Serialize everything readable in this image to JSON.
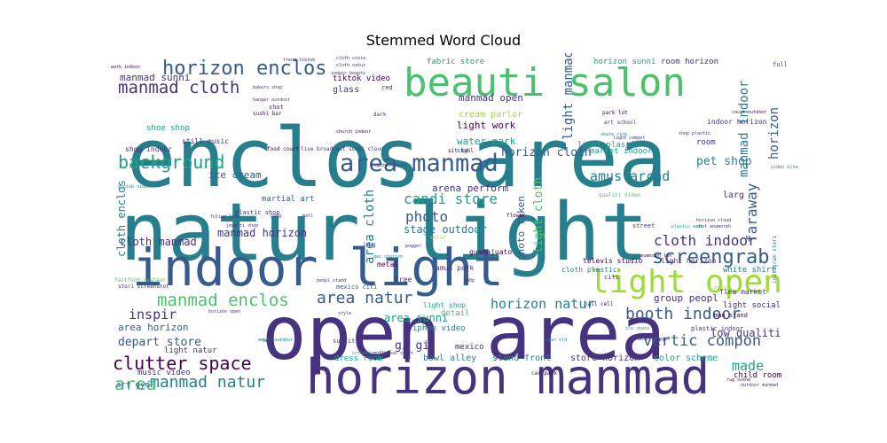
{
  "chart_data": {
    "type": "wordcloud",
    "title": "Stemmed Word Cloud",
    "palette": [
      "#440154",
      "#46327e",
      "#365c8d",
      "#277f8e",
      "#1fa187",
      "#4ac16d",
      "#a0da39",
      "#fde725"
    ],
    "words": [
      {
        "text": "enclos area",
        "size": 10,
        "color": "#277f8e"
      },
      {
        "text": "natur light",
        "size": 9.6,
        "color": "#277f8e"
      },
      {
        "text": "open area",
        "size": 8.8,
        "color": "#46327e"
      },
      {
        "text": "indoor light",
        "size": 7.2,
        "color": "#365c8d"
      },
      {
        "text": "horizon manmad",
        "size": 6.8,
        "color": "#46327e"
      },
      {
        "text": "beauti salon",
        "size": 5.0,
        "color": "#4ac16d"
      },
      {
        "text": "light open",
        "size": 4.6,
        "color": "#a0da39"
      },
      {
        "text": "area manmad",
        "size": 3.4,
        "color": "#365c8d"
      },
      {
        "text": "horizon enclos",
        "size": 3.0,
        "color": "#365c8d"
      },
      {
        "text": "screengrab",
        "size": 3.0,
        "color": "#365c8d"
      },
      {
        "text": "clutter space",
        "size": 2.9,
        "color": "#440154"
      },
      {
        "text": "background",
        "size": 2.8,
        "color": "#1fa187"
      },
      {
        "text": "manmad cloth",
        "size": 2.7,
        "color": "#46327e"
      },
      {
        "text": "manmad enclos",
        "size": 2.7,
        "color": "#4ac16d"
      },
      {
        "text": "area natur",
        "size": 2.6,
        "color": "#365c8d"
      },
      {
        "text": "booth indoor",
        "size": 2.6,
        "color": "#365c8d"
      },
      {
        "text": "manmad natur",
        "size": 2.6,
        "color": "#277f8e"
      },
      {
        "text": "vertic compon",
        "size": 2.5,
        "color": "#365c8d"
      },
      {
        "text": "candi store",
        "size": 2.4,
        "color": "#1fa187"
      },
      {
        "text": "cloth indoor",
        "size": 2.4,
        "color": "#46327e"
      },
      {
        "text": "faraway",
        "size": 2.4,
        "color": "#365c8d"
      },
      {
        "text": "photo",
        "size": 2.3,
        "color": "#365c8d"
      },
      {
        "text": "horizon natur",
        "size": 2.2,
        "color": "#277f8e"
      },
      {
        "text": "amus arcad",
        "size": 2.2,
        "color": "#277f8e"
      },
      {
        "text": "made",
        "size": 2.2,
        "color": "#1fa187"
      },
      {
        "text": "inspir",
        "size": 2.2,
        "color": "#46327e"
      },
      {
        "text": "light manmad",
        "size": 2.0,
        "color": "#365c8d"
      },
      {
        "text": "manmad indoor",
        "size": 2.0,
        "color": "#277f8e"
      },
      {
        "text": "horizon cloth",
        "size": 2.0,
        "color": "#365c8d"
      },
      {
        "text": "pet shop",
        "size": 1.9,
        "color": "#277f8e"
      },
      {
        "text": "depart store",
        "size": 1.9,
        "color": "#365c8d"
      },
      {
        "text": "area cloth",
        "size": 1.9,
        "color": "#277f8e"
      },
      {
        "text": "light cloth",
        "size": 1.8,
        "color": "#4ac16d"
      },
      {
        "text": "manmad horizon",
        "size": 1.8,
        "color": "#46327e"
      },
      {
        "text": "cloth manmad",
        "size": 1.8,
        "color": "#46327e"
      },
      {
        "text": "cloth enclos",
        "size": 1.8,
        "color": "#277f8e"
      },
      {
        "text": "stage outdoor",
        "size": 1.8,
        "color": "#277f8e"
      },
      {
        "text": "gi gi",
        "size": 1.9,
        "color": "#46327e"
      },
      {
        "text": "area",
        "size": 2.2,
        "color": "#4ac16d"
      },
      {
        "text": "area sunni",
        "size": 1.7,
        "color": "#1fa187"
      },
      {
        "text": "low qualiti",
        "size": 1.7,
        "color": "#46327e"
      },
      {
        "text": "manmad sunni",
        "size": 1.6,
        "color": "#46327e"
      },
      {
        "text": "area horizon",
        "size": 1.6,
        "color": "#365c8d"
      },
      {
        "text": "arena perform",
        "size": 1.5,
        "color": "#46327e"
      },
      {
        "text": "manmad open",
        "size": 1.5,
        "color": "#46327e"
      },
      {
        "text": "group peopl",
        "size": 1.5,
        "color": "#46327e"
      },
      {
        "text": "ice cream",
        "size": 1.5,
        "color": "#365c8d"
      },
      {
        "text": "light work",
        "size": 1.5,
        "color": "#440154"
      },
      {
        "text": "water park",
        "size": 1.4,
        "color": "#1fa187"
      },
      {
        "text": "photo taken",
        "size": 1.4,
        "color": "#365c8d"
      },
      {
        "text": "horizon",
        "size": 1.9,
        "color": "#365c8d"
      },
      {
        "text": "cream parlor",
        "size": 1.3,
        "color": "#a0da39"
      },
      {
        "text": "store horizon",
        "size": 1.3,
        "color": "#46327e"
      },
      {
        "text": "stand front",
        "size": 1.3,
        "color": "#277f8e"
      },
      {
        "text": "bowl alley",
        "size": 1.3,
        "color": "#277f8e"
      },
      {
        "text": "color scheme",
        "size": 1.3,
        "color": "#1fa187"
      },
      {
        "text": "fabric store",
        "size": 1.2,
        "color": "#1fa187"
      },
      {
        "text": "tiktok video",
        "size": 1.2,
        "color": "#440154"
      },
      {
        "text": "room horizon",
        "size": 1.2,
        "color": "#46327e"
      },
      {
        "text": "horizon sunni",
        "size": 1.2,
        "color": "#1fa187"
      },
      {
        "text": "shoe shop",
        "size": 1.2,
        "color": "#1fa187"
      },
      {
        "text": "market indoor",
        "size": 1.2,
        "color": "#1fa187"
      },
      {
        "text": "martial art",
        "size": 1.2,
        "color": "#365c8d"
      },
      {
        "text": "light plastic",
        "size": 1.2,
        "color": "#1fa187"
      },
      {
        "text": "light social",
        "size": 1.2,
        "color": "#46327e"
      },
      {
        "text": "glass",
        "size": 1.3,
        "color": "#46327e"
      },
      {
        "text": "detail",
        "size": 1.2,
        "color": "#4ac16d"
      },
      {
        "text": "light natur",
        "size": 1.2,
        "color": "#46327e"
      },
      {
        "text": "music video",
        "size": 1.2,
        "color": "#46327e"
      },
      {
        "text": "art gym",
        "size": 1.2,
        "color": "#365c8d"
      },
      {
        "text": "mexico",
        "size": 1.2,
        "color": "#46327e"
      },
      {
        "text": "iphon video",
        "size": 1.2,
        "color": "#277f8e"
      },
      {
        "text": "dress room",
        "size": 1.1,
        "color": "#1fa187"
      },
      {
        "text": "child room",
        "size": 1.1,
        "color": "#440154"
      },
      {
        "text": "white shirt",
        "size": 1.1,
        "color": "#277f8e"
      },
      {
        "text": "amus park",
        "size": 1.0,
        "color": "#46327e"
      },
      {
        "text": "light shop",
        "size": 1.0,
        "color": "#1fa187"
      },
      {
        "text": "larg",
        "size": 1.2,
        "color": "#46327e"
      },
      {
        "text": "still music",
        "size": 1.0,
        "color": "#46327e"
      },
      {
        "text": "shop indoor",
        "size": 1.0,
        "color": "#46327e"
      },
      {
        "text": "televis studio",
        "size": 1.0,
        "color": "#440154"
      },
      {
        "text": "guanajuato",
        "size": 1.0,
        "color": "#440154"
      },
      {
        "text": "cloth plastic",
        "size": 1.0,
        "color": "#277f8e"
      },
      {
        "text": "flea market",
        "size": 1.0,
        "color": "#46327e"
      },
      {
        "text": "light horizon",
        "size": 1.0,
        "color": "#46327e"
      },
      {
        "text": "room",
        "size": 1.1,
        "color": "#46327e"
      },
      {
        "text": "instagram stori",
        "size": 0.9,
        "color": "#277f8e"
      },
      {
        "text": "indoor horizon",
        "size": 1.0,
        "color": "#46327e"
      },
      {
        "text": "man stand",
        "size": 0.9,
        "color": "#440154"
      },
      {
        "text": "plastic indoor",
        "size": 0.9,
        "color": "#46327e"
      },
      {
        "text": "metal",
        "size": 1.0,
        "color": "#440154"
      },
      {
        "text": "tree",
        "size": 1.0,
        "color": "#46327e"
      },
      {
        "text": "mexico citi",
        "size": 0.9,
        "color": "#365c8d"
      },
      {
        "text": "plastic shop",
        "size": 0.9,
        "color": "#46327e"
      },
      {
        "text": "subtitl",
        "size": 0.9,
        "color": "#46327e"
      },
      {
        "text": "sushi bar",
        "size": 0.8,
        "color": "#440154"
      },
      {
        "text": "red",
        "size": 0.9,
        "color": "#46327e"
      },
      {
        "text": "dark",
        "size": 0.8,
        "color": "#46327e"
      },
      {
        "text": "park lot",
        "size": 0.8,
        "color": "#440154"
      },
      {
        "text": "citi",
        "size": 0.9,
        "color": "#46327e"
      },
      {
        "text": "street",
        "size": 0.9,
        "color": "#46327e"
      },
      {
        "text": "sky",
        "size": 0.9,
        "color": "#365c8d"
      },
      {
        "text": "shot",
        "size": 0.9,
        "color": "#46327e"
      },
      {
        "text": "imag",
        "size": 0.8,
        "color": "#46327e"
      },
      {
        "text": "flower",
        "size": 0.8,
        "color": "#440154"
      },
      {
        "text": "color",
        "size": 0.8,
        "color": "#a0da39"
      },
      {
        "text": "fastfood restaur",
        "size": 0.8,
        "color": "#4ac16d"
      },
      {
        "text": "stori screenshot",
        "size": 0.7,
        "color": "#46327e"
      },
      {
        "text": "car park",
        "size": 0.8,
        "color": "#440154"
      },
      {
        "text": "jail cell",
        "size": 0.8,
        "color": "#440154"
      },
      {
        "text": "qualiti video",
        "size": 0.8,
        "color": "#4ac16d"
      },
      {
        "text": "art school",
        "size": 0.8,
        "color": "#46327e"
      },
      {
        "text": "food court",
        "size": 0.8,
        "color": "#440154"
      },
      {
        "text": "live broadcast",
        "size": 0.8,
        "color": "#46327e"
      },
      {
        "text": "sunni cloud",
        "size": 0.8,
        "color": "#46327e"
      },
      {
        "text": "snapchat stori",
        "size": 0.7,
        "color": "#46327e"
      },
      {
        "text": "youtub video",
        "size": 0.7,
        "color": "#277f8e"
      },
      {
        "text": "hangar outdoor",
        "size": 0.7,
        "color": "#46327e"
      },
      {
        "text": "bakers shop",
        "size": 0.7,
        "color": "#46327e"
      },
      {
        "text": "cloth store",
        "size": 0.7,
        "color": "#46327e"
      },
      {
        "text": "cloth natur",
        "size": 0.7,
        "color": "#46327e"
      },
      {
        "text": "work indoor",
        "size": 0.7,
        "color": "#440154"
      },
      {
        "text": "indoor beauti",
        "size": 0.7,
        "color": "#46327e"
      },
      {
        "text": "church indoor",
        "size": 0.7,
        "color": "#440154"
      },
      {
        "text": "skate rink",
        "size": 0.7,
        "color": "#277f8e"
      },
      {
        "text": "light compet",
        "size": 0.7,
        "color": "#46327e"
      },
      {
        "text": "shop plastic",
        "size": 0.7,
        "color": "#46327e"
      },
      {
        "text": "video screenshot",
        "size": 0.7,
        "color": "#277f8e"
      },
      {
        "text": "court outdoor",
        "size": 0.7,
        "color": "#440154"
      },
      {
        "text": "horizon cloud",
        "size": 0.7,
        "color": "#46327e"
      },
      {
        "text": "shot anamorph",
        "size": 0.7,
        "color": "#46327e"
      },
      {
        "text": "foliag leav",
        "size": 0.7,
        "color": "#46327e"
      },
      {
        "text": "jewelri shop",
        "size": 0.7,
        "color": "#46327e"
      },
      {
        "text": "plastic work",
        "size": 0.7,
        "color": "#1fa187"
      },
      {
        "text": "anamorph len",
        "size": 0.7,
        "color": "#440154"
      },
      {
        "text": "gas station",
        "size": 0.7,
        "color": "#277f8e"
      },
      {
        "text": "peopl stand",
        "size": 0.7,
        "color": "#46327e"
      },
      {
        "text": "orchestra pit",
        "size": 0.7,
        "color": "#1fa187"
      },
      {
        "text": "volleybal court",
        "size": 0.7,
        "color": "#46327e"
      },
      {
        "text": "mosqu outdoor",
        "size": 0.7,
        "color": "#277f8e"
      },
      {
        "text": "horizon open",
        "size": 0.6,
        "color": "#46327e"
      },
      {
        "text": "desert veget",
        "size": 0.6,
        "color": "#46327e"
      },
      {
        "text": "ice skate",
        "size": 0.6,
        "color": "#1fa187"
      },
      {
        "text": "year old",
        "size": 0.6,
        "color": "#277f8e"
      },
      {
        "text": "rug scene",
        "size": 0.6,
        "color": "#440154"
      },
      {
        "text": "outdoor manmad",
        "size": 0.6,
        "color": "#46327e"
      },
      {
        "text": "240p",
        "size": 0.6,
        "color": "#46327e"
      },
      {
        "text": "pogger",
        "size": 0.6,
        "color": "#46327e"
      },
      {
        "text": "trend tiktok",
        "size": 0.6,
        "color": "#46327e"
      },
      {
        "text": "full",
        "size": 0.8,
        "color": "#46327e"
      },
      {
        "text": "style",
        "size": 0.7,
        "color": "#46327e"
      },
      {
        "text": "face",
        "size": 0.7,
        "color": "#46327e"
      },
      {
        "text": "hang",
        "size": 0.7,
        "color": "#46327e"
      },
      {
        "text": "mall",
        "size": 0.7,
        "color": "#46327e"
      },
      {
        "text": "paint",
        "size": 0.7,
        "color": "#a0da39"
      },
      {
        "text": "sit tabl",
        "size": 0.8,
        "color": "#440154"
      }
    ]
  }
}
